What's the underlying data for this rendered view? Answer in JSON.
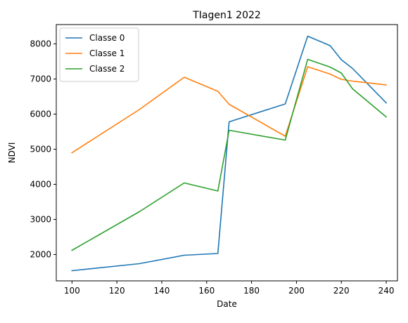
{
  "chart_data": {
    "type": "line",
    "title": "TIagen1 2022",
    "xlabel": "Date",
    "ylabel": "NDVI",
    "xlim": [
      93,
      245
    ],
    "ylim": [
      1250,
      8550
    ],
    "x_ticks": [
      100,
      120,
      140,
      160,
      180,
      200,
      220,
      240
    ],
    "y_ticks": [
      2000,
      3000,
      4000,
      5000,
      6000,
      7000,
      8000
    ],
    "grid": false,
    "legend_position": "top-left",
    "series": [
      {
        "name": "Classe 0",
        "color": "#1f77b4",
        "x": [
          100,
          130,
          150,
          165,
          170,
          195,
          205,
          215,
          220,
          225,
          240
        ],
        "y": [
          1540,
          1740,
          1980,
          2030,
          5780,
          6290,
          8220,
          7950,
          7550,
          7300,
          6320
        ]
      },
      {
        "name": "Classe 1",
        "color": "#ff7f0e",
        "x": [
          100,
          130,
          150,
          165,
          170,
          195,
          205,
          215,
          220,
          225,
          240
        ],
        "y": [
          4900,
          6130,
          7050,
          6650,
          6280,
          5370,
          7350,
          7140,
          6990,
          6940,
          6830
        ]
      },
      {
        "name": "Classe 2",
        "color": "#2ca02c",
        "x": [
          100,
          130,
          150,
          165,
          170,
          195,
          205,
          215,
          220,
          225,
          240
        ],
        "y": [
          2120,
          3220,
          4040,
          3810,
          5540,
          5260,
          7560,
          7340,
          7170,
          6720,
          5920
        ]
      }
    ]
  }
}
